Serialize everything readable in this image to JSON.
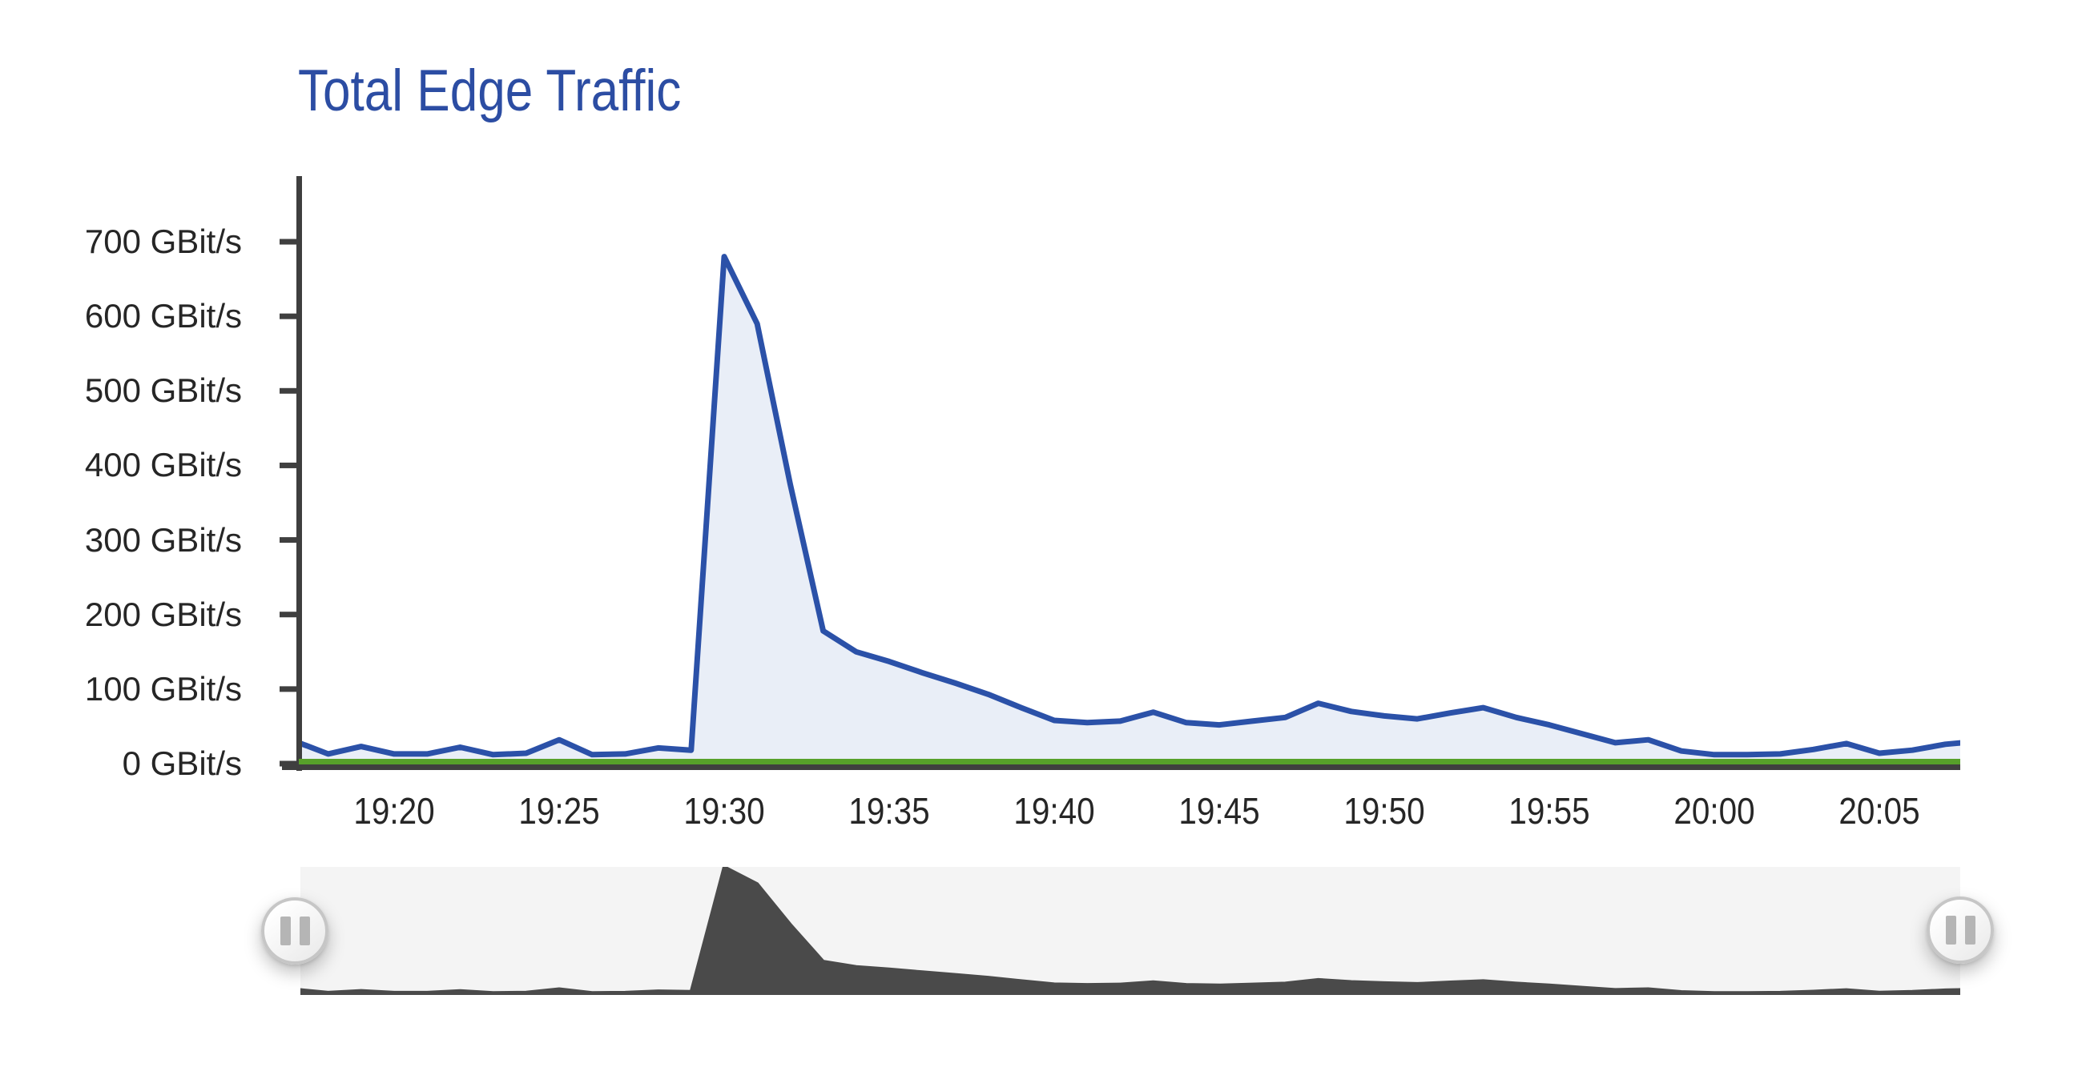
{
  "title": "Total Edge Traffic",
  "colors": {
    "title": "#2c4da3",
    "axis": "#3f3f3f",
    "tick_label": "#262626",
    "blue_line": "#2b51a8",
    "blue_fill": "#e9eef7",
    "green_line": "#57a02a",
    "navigator_background": "#f4f4f4",
    "navigator_preview": "#4a4a4a",
    "handle_border": "#c6c6c6",
    "handle_glyph": "#b5b5b5"
  },
  "chart_data": {
    "type": "area",
    "title": "Total Edge Traffic",
    "unit": "GBit/s",
    "grid_lines": false,
    "legend": false,
    "x_tick_labels": [
      "19:20",
      "19:25",
      "19:30",
      "19:35",
      "19:40",
      "19:45",
      "19:50",
      "19:55",
      "20:00",
      "20:05"
    ],
    "y_tick_values": [
      0,
      100,
      200,
      300,
      400,
      500,
      600,
      700
    ],
    "y_tick_labels": [
      "0 GBit/s",
      "100 GBit/s",
      "200 GBit/s",
      "300 GBit/s",
      "400 GBit/s",
      "500 GBit/s",
      "600 GBit/s",
      "700 GBit/s"
    ],
    "ylim": [
      0,
      788
    ],
    "x_range": [
      "19:17",
      "20:08"
    ],
    "series": [
      {
        "id": "edge-traffic",
        "style": "line-with-area",
        "line_color": "#2b51a8",
        "fill_color": "#e9eef7",
        "points": [
          [
            "19:17",
            30
          ],
          [
            "19:18",
            13
          ],
          [
            "19:19",
            23
          ],
          [
            "19:20",
            13
          ],
          [
            "19:21",
            13
          ],
          [
            "19:22",
            22
          ],
          [
            "19:23",
            12
          ],
          [
            "19:24",
            14
          ],
          [
            "19:25",
            32
          ],
          [
            "19:26",
            12
          ],
          [
            "19:27",
            13
          ],
          [
            "19:28",
            21
          ],
          [
            "19:29",
            18
          ],
          [
            "19:30",
            680
          ],
          [
            "19:31",
            590
          ],
          [
            "19:32",
            375
          ],
          [
            "19:33",
            178
          ],
          [
            "19:34",
            150
          ],
          [
            "19:35",
            137
          ],
          [
            "19:36",
            122
          ],
          [
            "19:37",
            108
          ],
          [
            "19:38",
            93
          ],
          [
            "19:39",
            75
          ],
          [
            "19:40",
            58
          ],
          [
            "19:41",
            55
          ],
          [
            "19:42",
            57
          ],
          [
            "19:43",
            69
          ],
          [
            "19:44",
            55
          ],
          [
            "19:45",
            52
          ],
          [
            "19:46",
            57
          ],
          [
            "19:47",
            62
          ],
          [
            "19:48",
            81
          ],
          [
            "19:49",
            70
          ],
          [
            "19:50",
            64
          ],
          [
            "19:51",
            60
          ],
          [
            "19:52",
            68
          ],
          [
            "19:53",
            75
          ],
          [
            "19:54",
            62
          ],
          [
            "19:55",
            52
          ],
          [
            "19:56",
            40
          ],
          [
            "19:57",
            28
          ],
          [
            "19:58",
            32
          ],
          [
            "19:59",
            17
          ],
          [
            "20:00",
            12
          ],
          [
            "20:01",
            12
          ],
          [
            "20:02",
            13
          ],
          [
            "20:03",
            19
          ],
          [
            "20:04",
            27
          ],
          [
            "20:05",
            14
          ],
          [
            "20:06",
            18
          ],
          [
            "20:07",
            26
          ],
          [
            "20:08",
            30
          ]
        ]
      },
      {
        "id": "baseline",
        "style": "line",
        "line_color": "#57a02a",
        "points": [
          [
            "19:17",
            2
          ],
          [
            "20:08",
            2
          ]
        ]
      }
    ]
  },
  "navigator": {
    "background_color": "#f4f4f4",
    "preview_color": "#4a4a4a",
    "selection": "full-range",
    "left_handle_icon": "pause-icon",
    "right_handle_icon": "pause-icon"
  }
}
